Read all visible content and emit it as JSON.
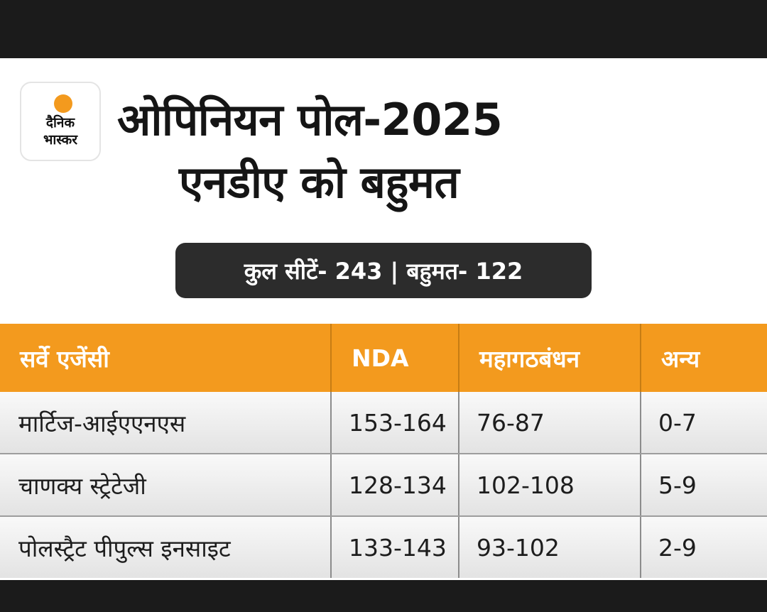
{
  "logo": {
    "text": "दैनिक\nभास्कर",
    "brand_color": "#f39a1e"
  },
  "title": "ओपिनियन पोल-2025",
  "subtitle": "एनडीए को बहुमत",
  "summary": "कुल सीटें- 243 | बहुमत- 122",
  "table": {
    "headers": [
      "सर्वे एजेंसी",
      "NDA",
      "महागठबंधन",
      "अन्य"
    ],
    "rows": [
      [
        "मार्टिज-आईएएनएस",
        "153-164",
        "76-87",
        "0-7"
      ],
      [
        "चाणक्य स्ट्रेटेजी",
        "128-134",
        "102-108",
        "5-9"
      ],
      [
        "पोलस्ट्रैट पीपुल्स इनसाइट",
        "133-143",
        "93-102",
        "2-9"
      ]
    ]
  },
  "colors": {
    "header_bg": "#f39a1e",
    "pill_bg": "#2c2c2c",
    "frame_bg": "#1b1b1b"
  }
}
